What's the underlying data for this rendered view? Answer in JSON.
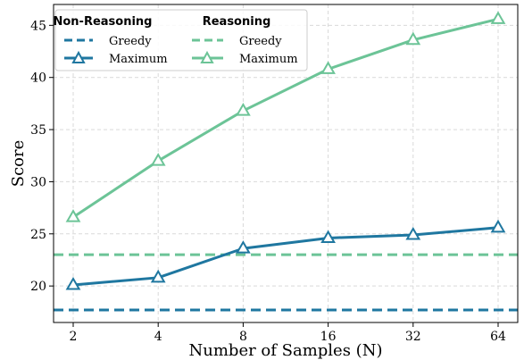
{
  "chart_data": {
    "type": "line",
    "xlabel": "Number of Samples (N)",
    "ylabel": "Score",
    "x": [
      "2",
      "4",
      "8",
      "16",
      "32",
      "64"
    ],
    "ylim": [
      16.5,
      47
    ],
    "yticks": [
      20,
      25,
      30,
      35,
      40,
      45
    ],
    "x_scale": "log2",
    "grid": true,
    "legend_placement": "top-left",
    "legend_groups": [
      {
        "title": "Non-Reasoning",
        "entries": [
          "Greedy",
          "Maximum"
        ]
      },
      {
        "title": "Reasoning",
        "entries": [
          "Greedy",
          "Maximum"
        ]
      }
    ],
    "series": [
      {
        "name": "Maximum",
        "group": "Non-Reasoning",
        "style": "solid",
        "marker": "triangle",
        "color": "#1f77a0",
        "values": [
          20.1,
          20.8,
          23.6,
          24.6,
          24.9,
          25.6
        ]
      },
      {
        "name": "Maximum",
        "group": "Reasoning",
        "style": "solid",
        "marker": "triangle",
        "color": "#6cc497",
        "values": [
          26.6,
          32.0,
          36.8,
          40.8,
          43.6,
          45.6
        ]
      },
      {
        "name": "Greedy",
        "group": "Non-Reasoning",
        "style": "dashed",
        "color": "#1f77a0",
        "value": 17.7
      },
      {
        "name": "Greedy",
        "group": "Reasoning",
        "style": "dashed",
        "color": "#6cc497",
        "value": 23.0
      }
    ]
  }
}
